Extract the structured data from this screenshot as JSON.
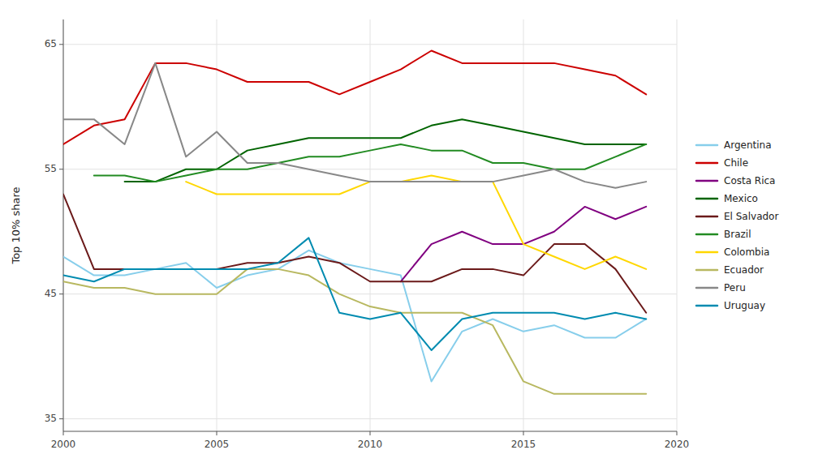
{
  "chart_data": {
    "type": "line",
    "ylabel": "Top 10% share",
    "x": [
      2000,
      2001,
      2002,
      2003,
      2004,
      2005,
      2006,
      2007,
      2008,
      2009,
      2010,
      2011,
      2012,
      2013,
      2014,
      2015,
      2016,
      2017,
      2018,
      2019
    ],
    "xlim": [
      2000,
      2020
    ],
    "xticks": [
      2000,
      2005,
      2010,
      2015,
      2020
    ],
    "ylim": [
      34,
      67
    ],
    "yticks": [
      35,
      45,
      55,
      65
    ],
    "grid": true,
    "legend": "right",
    "series": [
      {
        "name": "Argentina",
        "color": "#87CEEB",
        "values": [
          48,
          46.5,
          46.5,
          47,
          47.5,
          45.5,
          46.5,
          47,
          48.5,
          47.5,
          47,
          46.5,
          38,
          42,
          43,
          42,
          42.5,
          41.5,
          41.5,
          43
        ]
      },
      {
        "name": "Chile",
        "color": "#cc0000",
        "values": [
          57,
          58.5,
          59,
          63.5,
          63.5,
          63,
          62,
          62,
          62,
          61,
          62,
          63,
          64.5,
          63.5,
          63.5,
          63.5,
          63.5,
          63,
          62.5,
          61
        ]
      },
      {
        "name": "Costa Rica",
        "color": "#800080",
        "values": [
          null,
          null,
          null,
          null,
          null,
          null,
          null,
          null,
          null,
          null,
          null,
          46,
          49,
          50,
          49,
          49,
          50,
          52,
          51,
          52
        ]
      },
      {
        "name": "Mexico",
        "color": "#006400",
        "values": [
          null,
          null,
          54,
          54,
          55,
          55,
          56.5,
          57,
          57.5,
          57.5,
          57.5,
          57.5,
          58.5,
          59,
          58.5,
          58,
          57.5,
          57,
          57,
          57
        ]
      },
      {
        "name": "El Salvador",
        "color": "#6B1A1A",
        "values": [
          53,
          47,
          47,
          47,
          47,
          47,
          47.5,
          47.5,
          48,
          47.5,
          46,
          46,
          46,
          47,
          47,
          46.5,
          49,
          49,
          47,
          43.5
        ]
      },
      {
        "name": "Brazil",
        "color": "#228B22",
        "values": [
          null,
          54.5,
          54.5,
          54,
          54.5,
          55,
          55,
          55.5,
          56,
          56,
          56.5,
          57,
          56.5,
          56.5,
          55.5,
          55.5,
          55,
          55,
          56,
          57
        ]
      },
      {
        "name": "Colombia",
        "color": "#FFD700",
        "values": [
          null,
          null,
          null,
          null,
          54,
          53,
          53,
          53,
          53,
          53,
          54,
          54,
          54.5,
          54,
          54,
          49,
          48,
          47,
          48,
          47
        ]
      },
      {
        "name": "Ecuador",
        "color": "#b8b860",
        "values": [
          46,
          45.5,
          45.5,
          45,
          45,
          45,
          47,
          47,
          46.5,
          45,
          44,
          43.5,
          43.5,
          43.5,
          42.5,
          38,
          37,
          37,
          37,
          37
        ]
      },
      {
        "name": "Peru",
        "color": "#888888",
        "values": [
          59,
          59,
          57,
          63.5,
          56,
          58,
          55.5,
          55.5,
          55,
          54.5,
          54,
          54,
          54,
          54,
          54,
          54.5,
          55,
          54,
          53.5,
          54
        ]
      },
      {
        "name": "Uruguay",
        "color": "#008BB0",
        "values": [
          46.5,
          46,
          47,
          47,
          47,
          47,
          47,
          47.5,
          49.5,
          43.5,
          43,
          43.5,
          40.5,
          43,
          43.5,
          43.5,
          43.5,
          43,
          43.5,
          43
        ]
      }
    ]
  }
}
